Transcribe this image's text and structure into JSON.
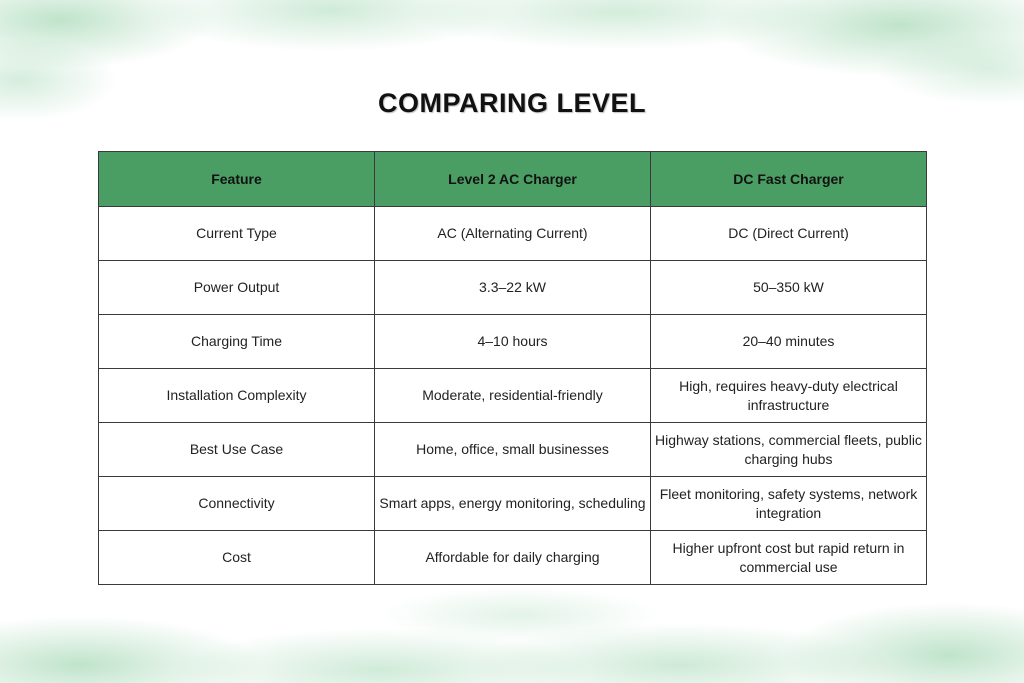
{
  "title": "COMPARING LEVEL",
  "colors": {
    "header_bg": "#4a9e63",
    "wash_green": "#8ccda0",
    "border": "#3a3a3a"
  },
  "table": {
    "headers": [
      "Feature",
      "Level 2 AC Charger",
      "DC Fast Charger"
    ],
    "rows": [
      [
        "Current Type",
        "AC (Alternating Current)",
        "DC (Direct Current)"
      ],
      [
        "Power Output",
        "3.3–22 kW",
        "50–350 kW"
      ],
      [
        "Charging Time",
        "4–10 hours",
        "20–40 minutes"
      ],
      [
        "Installation Complexity",
        "Moderate, residential-friendly",
        "High, requires heavy-duty electrical infrastructure"
      ],
      [
        "Best Use Case",
        "Home, office, small businesses",
        "Highway stations, commercial fleets, public charging hubs"
      ],
      [
        "Connectivity",
        "Smart apps, energy monitoring, scheduling",
        "Fleet monitoring, safety systems, network integration"
      ],
      [
        "Cost",
        "Affordable for daily charging",
        "Higher upfront cost but rapid return in commercial use"
      ]
    ]
  }
}
